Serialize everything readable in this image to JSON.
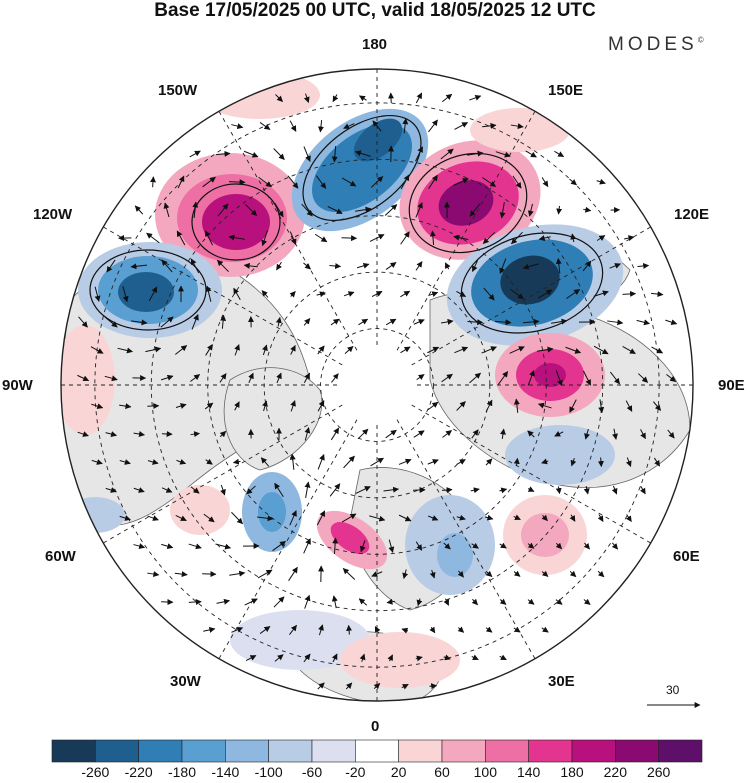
{
  "title": "Base 17/05/2025 00 UTC, valid 18/05/2025 12 UTC",
  "brand": "MODES",
  "brand_mark": "©",
  "longitude_labels": {
    "top": "180",
    "bottom": "0",
    "left": "90W",
    "right": "90E",
    "upper_left_1": "150W",
    "upper_left_2": "120W",
    "upper_right_1": "150E",
    "upper_right_2": "120E",
    "lower_left_1": "60W",
    "lower_left_2": "30W",
    "lower_right_1": "60E",
    "lower_right_2": "30E"
  },
  "reference_vector": "30",
  "colorbar": {
    "ticks": [
      "-260",
      "-220",
      "-180",
      "-140",
      "-100",
      "-60",
      "-20",
      "20",
      "60",
      "100",
      "140",
      "180",
      "220",
      "260"
    ],
    "colors": [
      "#163a58",
      "#1f5f8f",
      "#2f7fb6",
      "#5a9fd1",
      "#8eb8df",
      "#b9cce6",
      "#dcdff0",
      "#ffffff",
      "#f9d5d6",
      "#f4a8bf",
      "#ee6fa4",
      "#e3348f",
      "#b8107c",
      "#8a0a72",
      "#5e0f6a"
    ]
  },
  "colors": {
    "land": "#e6e6e6",
    "coast": "#666666",
    "grid": "#222222",
    "arrow": "#111111"
  }
}
